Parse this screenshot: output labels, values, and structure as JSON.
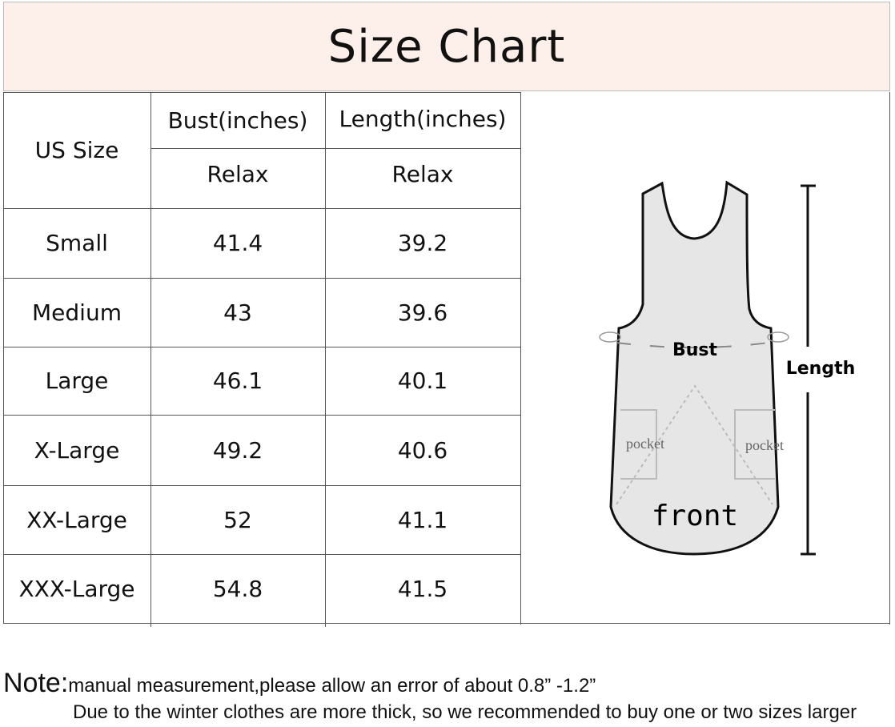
{
  "title": "Size Chart",
  "table": {
    "size_header": "US Size",
    "bust_header": "Bust(inches)",
    "length_header": "Length(inches)",
    "bust_sub": "Relax",
    "length_sub": "Relax",
    "rows": [
      {
        "size": "Small",
        "bust": "41.4",
        "length": "39.2"
      },
      {
        "size": "Medium",
        "bust": "43",
        "length": "39.6"
      },
      {
        "size": "Large",
        "bust": "46.1",
        "length": "40.1"
      },
      {
        "size": "X-Large",
        "bust": "49.2",
        "length": "40.6"
      },
      {
        "size": "XX-Large",
        "bust": "52",
        "length": "41.1"
      },
      {
        "size": "XXX-Large",
        "bust": "54.8",
        "length": "41.5"
      }
    ]
  },
  "diagram": {
    "bust_label": "Bust",
    "length_label": "Length",
    "pocket_left": "pocket",
    "pocket_right": "pocket",
    "front_label": "front"
  },
  "note": {
    "prefix": "Note:",
    "line1": "manual measurement,please allow an error of about 0.8”   -1.2”",
    "line2": "Due to the winter clothes are more thick, so we recommended to buy one or two sizes larger"
  },
  "colors": {
    "header_bg": "#fdefe9",
    "apron_fill": "#e6e6e6"
  }
}
